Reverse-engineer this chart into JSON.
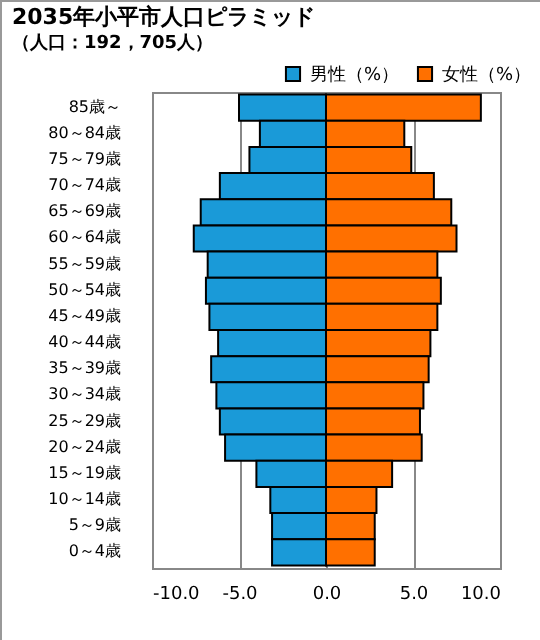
{
  "chart_data": {
    "type": "bar",
    "orientation": "horizontal",
    "title": "2035年小平市人口ピラミッド",
    "subtitle": "（人口：192，705人）",
    "categories": [
      "85歳～",
      "80～84歳",
      "75～79歳",
      "70～74歳",
      "65～69歳",
      "60～64歳",
      "55～59歳",
      "50～54歳",
      "45～49歳",
      "40～44歳",
      "35～39歳",
      "30～34歳",
      "25～29歳",
      "20～24歳",
      "15～19歳",
      "10～14歳",
      "5～9歳",
      "0～4歳"
    ],
    "series": [
      {
        "name": "男性（%）",
        "color": "#1a9ad8",
        "values": [
          -5.0,
          -3.8,
          -4.4,
          -6.1,
          -7.2,
          -7.6,
          -6.8,
          -6.9,
          -6.7,
          -6.2,
          -6.6,
          -6.3,
          -6.1,
          -5.8,
          -4.0,
          -3.2,
          -3.1,
          -3.1
        ]
      },
      {
        "name": "女性（%）",
        "color": "#ff7000",
        "values": [
          8.9,
          4.5,
          4.9,
          6.2,
          7.2,
          7.5,
          6.4,
          6.6,
          6.4,
          6.0,
          5.9,
          5.6,
          5.4,
          5.5,
          3.8,
          2.9,
          2.8,
          2.8
        ]
      }
    ],
    "xlim": [
      -10,
      10
    ],
    "xticks": [
      {
        "value": -10,
        "label": "-10.0"
      },
      {
        "value": -5,
        "label": "-5.0"
      },
      {
        "value": 0,
        "label": "0.0"
      },
      {
        "value": 5,
        "label": "5.0"
      },
      {
        "value": 10,
        "label": "10.0"
      }
    ],
    "grid": "x",
    "legend": "top right",
    "stacked": true
  }
}
